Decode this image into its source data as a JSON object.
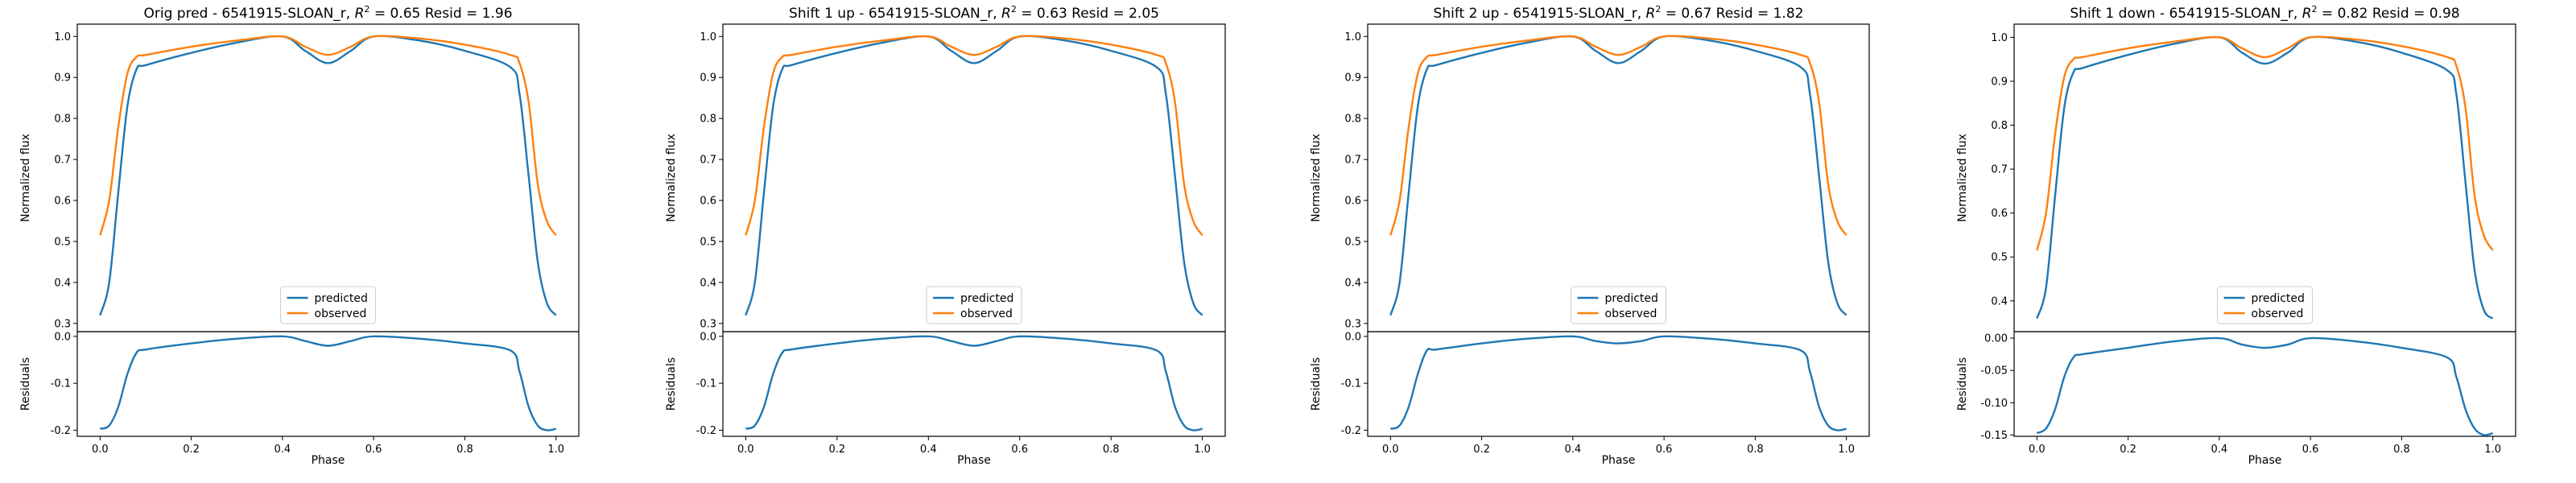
{
  "colors": {
    "predicted": "#1f77b4",
    "observed": "#ff7f0e",
    "frame": "#000000",
    "legend_edge": "#cccccc"
  },
  "chart_data": [
    {
      "type": "line",
      "title_prefix": "Orig pred - 6541915-SLOAN_r, ",
      "r2_text": "0.65",
      "resid_text": "1.96",
      "ylabel_top": "Normalized flux",
      "ylabel_bottom": "Residuals",
      "xlabel": "Phase",
      "x": [
        0.0,
        0.02,
        0.04,
        0.06,
        0.08,
        0.1,
        0.2,
        0.3,
        0.4,
        0.45,
        0.5,
        0.55,
        0.6,
        0.7,
        0.8,
        0.9,
        0.92,
        0.94,
        0.96,
        0.98,
        1.0
      ],
      "series": [
        {
          "name": "predicted",
          "values": [
            0.32,
            0.4,
            0.62,
            0.83,
            0.92,
            0.93,
            0.96,
            0.985,
            1.0,
            0.965,
            0.935,
            0.965,
            1.0,
            0.99,
            0.965,
            0.925,
            0.86,
            0.66,
            0.45,
            0.35,
            0.32
          ]
        },
        {
          "name": "observed",
          "values": [
            0.515,
            0.6,
            0.78,
            0.91,
            0.95,
            0.955,
            0.975,
            0.99,
            1.0,
            0.975,
            0.955,
            0.975,
            1.0,
            0.995,
            0.98,
            0.955,
            0.935,
            0.84,
            0.64,
            0.55,
            0.515
          ]
        }
      ],
      "residuals": [
        -0.197,
        -0.19,
        -0.15,
        -0.08,
        -0.035,
        -0.028,
        -0.015,
        -0.005,
        0.0,
        -0.01,
        -0.02,
        -0.01,
        0.0,
        -0.005,
        -0.015,
        -0.03,
        -0.075,
        -0.15,
        -0.19,
        -0.2,
        -0.197
      ],
      "ylim_top": [
        0.28,
        1.03
      ],
      "yticks_top": [
        "0.3",
        "0.4",
        "0.5",
        "0.6",
        "0.7",
        "0.8",
        "0.9",
        "1.0"
      ],
      "ylim_bottom": [
        -0.213,
        0.01
      ],
      "yticks_bottom": [
        "0.0",
        "-0.1",
        "-0.2"
      ],
      "xticks": [
        "0.0",
        "0.2",
        "0.4",
        "0.6",
        "0.8",
        "1.0"
      ],
      "legend": "lower center"
    },
    {
      "type": "line",
      "title_prefix": "Shift 1 up - 6541915-SLOAN_r, ",
      "r2_text": "0.63",
      "resid_text": "2.05",
      "ylabel_top": "Normalized flux",
      "ylabel_bottom": "Residuals",
      "xlabel": "Phase",
      "x": [
        0.0,
        0.02,
        0.04,
        0.06,
        0.08,
        0.1,
        0.2,
        0.3,
        0.4,
        0.45,
        0.5,
        0.55,
        0.6,
        0.7,
        0.8,
        0.9,
        0.92,
        0.94,
        0.96,
        0.98,
        1.0
      ],
      "series": [
        {
          "name": "predicted",
          "values": [
            0.32,
            0.4,
            0.62,
            0.83,
            0.92,
            0.93,
            0.96,
            0.985,
            1.0,
            0.965,
            0.935,
            0.965,
            1.0,
            0.99,
            0.965,
            0.925,
            0.86,
            0.66,
            0.45,
            0.35,
            0.32
          ]
        },
        {
          "name": "observed",
          "values": [
            0.515,
            0.6,
            0.78,
            0.91,
            0.95,
            0.955,
            0.975,
            0.99,
            1.0,
            0.975,
            0.955,
            0.975,
            1.0,
            0.995,
            0.98,
            0.955,
            0.935,
            0.84,
            0.64,
            0.55,
            0.515
          ]
        }
      ],
      "residuals": [
        -0.197,
        -0.19,
        -0.15,
        -0.08,
        -0.035,
        -0.028,
        -0.015,
        -0.005,
        0.0,
        -0.01,
        -0.02,
        -0.01,
        0.0,
        -0.005,
        -0.015,
        -0.03,
        -0.075,
        -0.15,
        -0.19,
        -0.2,
        -0.197
      ],
      "ylim_top": [
        0.28,
        1.03
      ],
      "yticks_top": [
        "0.3",
        "0.4",
        "0.5",
        "0.6",
        "0.7",
        "0.8",
        "0.9",
        "1.0"
      ],
      "ylim_bottom": [
        -0.213,
        0.01
      ],
      "yticks_bottom": [
        "0.0",
        "-0.1",
        "-0.2"
      ],
      "xticks": [
        "0.0",
        "0.2",
        "0.4",
        "0.6",
        "0.8",
        "1.0"
      ],
      "legend": "lower center"
    },
    {
      "type": "line",
      "title_prefix": "Shift 2 up - 6541915-SLOAN_r, ",
      "r2_text": "0.67",
      "resid_text": "1.82",
      "ylabel_top": "Normalized flux",
      "ylabel_bottom": "Residuals",
      "xlabel": "Phase",
      "x": [
        0.0,
        0.02,
        0.04,
        0.06,
        0.08,
        0.1,
        0.2,
        0.3,
        0.4,
        0.45,
        0.5,
        0.55,
        0.6,
        0.7,
        0.8,
        0.9,
        0.92,
        0.94,
        0.96,
        0.98,
        1.0
      ],
      "series": [
        {
          "name": "predicted",
          "values": [
            0.32,
            0.4,
            0.62,
            0.83,
            0.92,
            0.93,
            0.96,
            0.985,
            1.0,
            0.965,
            0.935,
            0.965,
            1.0,
            0.99,
            0.965,
            0.925,
            0.86,
            0.66,
            0.45,
            0.35,
            0.32
          ]
        },
        {
          "name": "observed",
          "values": [
            0.515,
            0.6,
            0.78,
            0.91,
            0.95,
            0.955,
            0.975,
            0.99,
            1.0,
            0.975,
            0.955,
            0.975,
            1.0,
            0.995,
            0.98,
            0.955,
            0.935,
            0.84,
            0.64,
            0.55,
            0.515
          ]
        }
      ],
      "residuals": [
        -0.197,
        -0.19,
        -0.15,
        -0.08,
        -0.03,
        -0.028,
        -0.015,
        -0.005,
        0.0,
        -0.01,
        -0.015,
        -0.01,
        0.0,
        -0.005,
        -0.015,
        -0.03,
        -0.075,
        -0.15,
        -0.19,
        -0.2,
        -0.197
      ],
      "ylim_top": [
        0.28,
        1.03
      ],
      "yticks_top": [
        "0.3",
        "0.4",
        "0.5",
        "0.6",
        "0.7",
        "0.8",
        "0.9",
        "1.0"
      ],
      "ylim_bottom": [
        -0.213,
        0.01
      ],
      "yticks_bottom": [
        "0.0",
        "-0.1",
        "-0.2"
      ],
      "xticks": [
        "0.0",
        "0.2",
        "0.4",
        "0.6",
        "0.8",
        "1.0"
      ],
      "legend": "lower center"
    },
    {
      "type": "line",
      "title_prefix": "Shift 1 down - 6541915-SLOAN_r, ",
      "r2_text": "0.82",
      "resid_text": "0.98",
      "ylabel_top": "Normalized flux",
      "ylabel_bottom": "Residuals",
      "xlabel": "Phase",
      "x": [
        0.0,
        0.02,
        0.04,
        0.06,
        0.08,
        0.1,
        0.2,
        0.3,
        0.4,
        0.45,
        0.5,
        0.55,
        0.6,
        0.7,
        0.8,
        0.9,
        0.92,
        0.94,
        0.96,
        0.98,
        1.0
      ],
      "series": [
        {
          "name": "predicted",
          "values": [
            0.36,
            0.43,
            0.64,
            0.84,
            0.92,
            0.93,
            0.96,
            0.985,
            1.0,
            0.965,
            0.94,
            0.965,
            1.0,
            0.99,
            0.965,
            0.925,
            0.87,
            0.67,
            0.47,
            0.38,
            0.36
          ]
        },
        {
          "name": "observed",
          "values": [
            0.515,
            0.6,
            0.78,
            0.91,
            0.95,
            0.955,
            0.975,
            0.99,
            1.0,
            0.975,
            0.955,
            0.975,
            1.0,
            0.995,
            0.98,
            0.955,
            0.935,
            0.84,
            0.64,
            0.55,
            0.515
          ]
        }
      ],
      "residuals": [
        -0.147,
        -0.14,
        -0.11,
        -0.06,
        -0.03,
        -0.025,
        -0.015,
        -0.005,
        0.0,
        -0.01,
        -0.015,
        -0.01,
        0.0,
        -0.005,
        -0.015,
        -0.03,
        -0.06,
        -0.11,
        -0.14,
        -0.15,
        -0.147
      ],
      "ylim_top": [
        0.33,
        1.03
      ],
      "yticks_top": [
        "0.4",
        "0.5",
        "0.6",
        "0.7",
        "0.8",
        "0.9",
        "1.0"
      ],
      "ylim_bottom": [
        -0.152,
        0.01
      ],
      "yticks_bottom": [
        "0.00",
        "-0.05",
        "-0.10",
        "-0.15"
      ],
      "xticks": [
        "0.0",
        "0.2",
        "0.4",
        "0.6",
        "0.8",
        "1.0"
      ],
      "legend": "lower center"
    }
  ]
}
